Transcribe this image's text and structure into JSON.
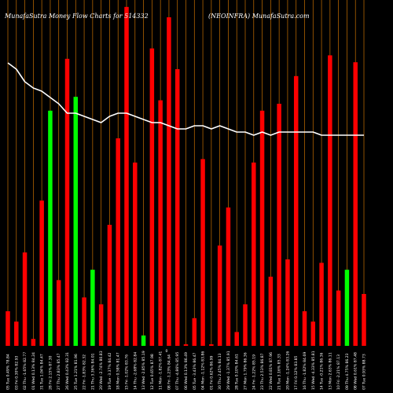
{
  "chart_data": {
    "type": "bar",
    "title_left": "MunafaSutra  Money Flow  Charts for 514332",
    "title_right": "(NEOINFRA) MunafaSutra.com",
    "axis_marker": "0",
    "ylim": [
      0,
      100
    ],
    "line_ylim": [
      0,
      100
    ],
    "grid": "vertical",
    "bar_colors": {
      "red": "#ff0000",
      "green": "#00ff00"
    },
    "grid_color": "#c87000",
    "line_color": "#ffffff",
    "categories": [
      "05 Tue 0.49% 78.84",
      "03 Fri 0.30% 82.93",
      "02 Thu -1.65% 82.77",
      "01 Wed 0.13% 84.24",
      "31 Tue 1.04% 84.47",
      "28 Fri 2.15% 87.30",
      "27 Thu 2.83% 85.47",
      "26 Wed 0.43% 82.31",
      "25 Tue 1.21% 81.96",
      "22 Fri -1.83% 82.32",
      "21 Thu 3.36% 84.01",
      "20 Wed -2.74% 80.83",
      "19 Tue -3.37% 84.42",
      "18 Mon 0.58% 81.47",
      "15 Fri -1.02% 83.76",
      "14 Thu -2.68% 82.84",
      "13 Wed -2.85% 85.19",
      "12 Tue 0.65% 87.98",
      "11 Mon -1.82% 87.41",
      "08 Fri -1.23% 84.64",
      "07 Thu -4.86% 85.95",
      "06 Wed 0.13% 86.49",
      "05 Tue -3.43% 86.47",
      "04 Mon -1.12% 83.86",
      "01 Fri 0.62% 86.99",
      "30 Thu 2.45% 84.13",
      "29 Wed -1.37% 85.91",
      "28 Tue 0.10% 84.61",
      "27 Mon 1.79% 86.36",
      "24 Fri -1.22% 85.19",
      "23 Thu 2.53% 86.87",
      "22 Wed 0.81% 87.96",
      "21 Tue 3.16% 85.33",
      "20 Mon -1.24% 83.26",
      "17 Fri 0.12% 83.85",
      "16 Thu -1.82% 84.69",
      "15 Wed -4.33% 85.81",
      "14 Tue -0.21% 86.36",
      "13 Mon 2.63% 86.11",
      "10 Fri -2.21% 87.13",
      "09 Thu 4.75% 86.23",
      "08 Wed 0.61% 87.48",
      "07 Tue 0.93% 88.73"
    ],
    "values": [
      10,
      7,
      27,
      2,
      42,
      68,
      19,
      83,
      72,
      14,
      22,
      12,
      35,
      60,
      98,
      53,
      3,
      86,
      71,
      95,
      80,
      0,
      8,
      54,
      0,
      29,
      40,
      4,
      12,
      53,
      68,
      20,
      70,
      25,
      78,
      10,
      7,
      24,
      84,
      16,
      22,
      82,
      15
    ],
    "colors": [
      "red",
      "red",
      "red",
      "red",
      "red",
      "green",
      "red",
      "red",
      "green",
      "red",
      "green",
      "red",
      "red",
      "red",
      "red",
      "red",
      "green",
      "red",
      "red",
      "red",
      "red",
      "red",
      "red",
      "red",
      "red",
      "red",
      "red",
      "red",
      "red",
      "red",
      "red",
      "red",
      "red",
      "red",
      "red",
      "red",
      "red",
      "red",
      "red",
      "red",
      "green",
      "red",
      "red"
    ],
    "line_values": [
      90,
      88,
      84,
      82,
      81,
      79,
      77,
      74,
      74,
      73,
      72,
      71,
      73,
      74,
      74,
      73,
      72,
      71,
      71,
      70,
      69,
      69,
      70,
      70,
      69,
      70,
      69,
      68,
      68,
      67,
      68,
      67,
      68,
      68,
      68,
      68,
      68,
      67,
      67,
      67,
      67,
      67,
      67
    ]
  }
}
